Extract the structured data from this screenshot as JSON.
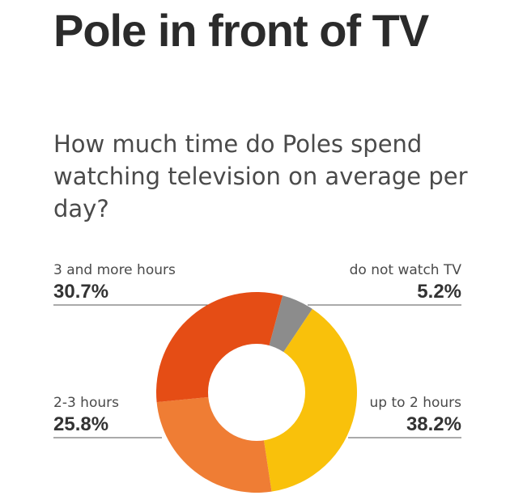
{
  "title": "Pole in front of TV",
  "subtitle": "How much time do Poles spend watching television on average per day?",
  "chart_data": {
    "type": "pie",
    "title": "Pole in front of TV",
    "subtitle": "How much time do Poles spend watching television on average per day?",
    "unit": "%",
    "slices": [
      {
        "label": "do not watch TV",
        "value": 5.2,
        "value_text": "5.2%",
        "color": "#8c8c8c"
      },
      {
        "label": "up to 2 hours",
        "value": 38.2,
        "value_text": "38.2%",
        "color": "#f9c10b"
      },
      {
        "label": "2-3 hours",
        "value": 25.8,
        "value_text": "25.8%",
        "color": "#ef7d34"
      },
      {
        "label": "3 and more hours",
        "value": 30.7,
        "value_text": "30.7%",
        "color": "#e54d15"
      }
    ],
    "start_angle_deg": 15,
    "hole": "donut"
  }
}
